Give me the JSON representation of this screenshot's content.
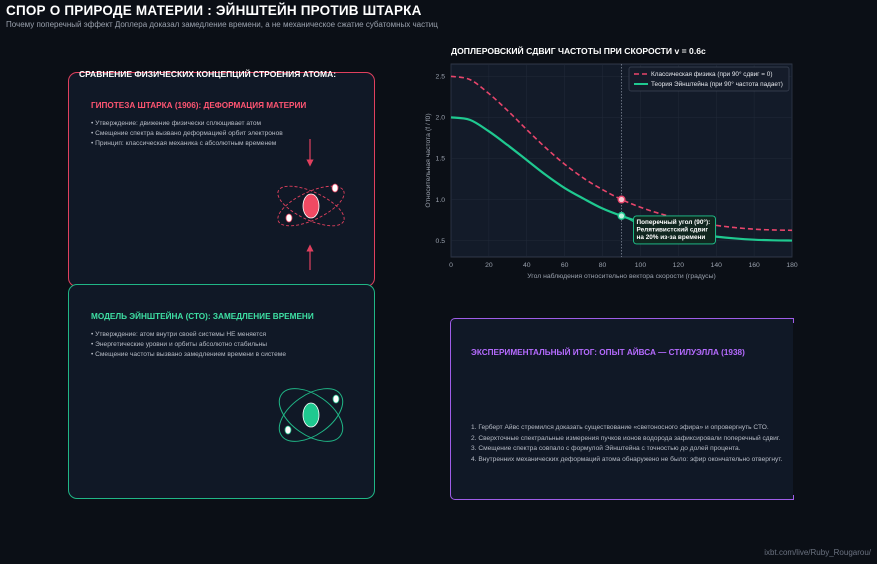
{
  "header": {
    "title": "СПОР О ПРИРОДЕ МАТЕРИИ : ЭЙНШТЕЙН ПРОТИВ ШТАРКА",
    "subtitle": "Почему поперечный эффект Доплера доказал замедление времени, а не механическое сжатие субатомных частиц"
  },
  "comparison": {
    "heading": "СРАВНЕНИЕ ФИЗИЧЕСКИХ КОНЦЕПЦИЙ СТРОЕНИЯ АТОМА:",
    "stark": {
      "title": "ГИПОТЕЗА ШТАРКА (1906): ДЕФОРМАЦИЯ МАТЕРИИ",
      "bullets": [
        "• Утверждение: движение физически сплющивает атом",
        "• Смещение спектра вызвано деформацией орбит электронов",
        "• Принцип: классическая механика с абсолютным временем"
      ],
      "color": "#e0405e"
    },
    "einstein": {
      "title": "МОДЕЛЬ ЭЙНШТЕЙНА (СТО): ЗАМЕДЛЕНИЕ ВРЕМЕНИ",
      "bullets": [
        "• Утверждение: атом внутри своей системы НЕ меняется",
        "• Энергетические уровни и орбиты абсолютно стабильны",
        "• Смещение частоты вызвано замедлением времени в системе"
      ],
      "color": "#20b686"
    }
  },
  "experiment": {
    "title": "ЭКСПЕРИМЕНТАЛЬНЫЙ ИТОГ: ОПЫТ АЙВСА — СТИЛУЭЛЛА (1938)",
    "steps": [
      "1. Герберт Айвс стремился доказать существование «светоносного эфира» и опровергнуть СТО.",
      "2. Сверхточные спектральные измерения пучков ионов водорода зафиксировали поперечный сдвиг.",
      "3. Смещение спектра совпало с формулой Эйнштейна с точностью до долей процента.",
      "4. Внутренних механических деформаций атома обнаружено не было: эфир окончательно отвергнут."
    ],
    "color": "#9f5de8"
  },
  "chart_data": {
    "type": "line",
    "title": "ДОПЛЕРОВСКИЙ СДВИГ ЧАСТОТЫ ПРИ СКОРОСТИ v = 0.6c",
    "xlabel": "Угол наблюдения относительно вектора скорости (градусы)",
    "ylabel": "Относительная частота (f / f0)",
    "xlim": [
      0,
      180
    ],
    "ylim": [
      0.3,
      2.65
    ],
    "xticks": [
      0,
      20,
      40,
      60,
      80,
      100,
      120,
      140,
      160,
      180
    ],
    "yticks": [
      0.5,
      1.0,
      1.5,
      2.0,
      2.5
    ],
    "ytick_labels": [
      "0.5",
      "1.0",
      "1.5",
      "2.0",
      "2.5"
    ],
    "grid": true,
    "legend_position": "top-right",
    "series": [
      {
        "name": "Классическая физика (при 90° сдвиг = 0)",
        "color": "#e8456b",
        "style": "dashed",
        "x": [
          0,
          10,
          20,
          30,
          40,
          50,
          60,
          70,
          80,
          90,
          100,
          110,
          120,
          130,
          140,
          150,
          160,
          170,
          180
        ],
        "values": [
          2.5,
          2.46,
          2.29,
          2.08,
          1.85,
          1.63,
          1.43,
          1.26,
          1.12,
          1.0,
          0.906,
          0.83,
          0.769,
          0.722,
          0.685,
          0.658,
          0.639,
          0.629,
          0.625
        ]
      },
      {
        "name": "Теория Эйнштейна (при 90° частота падает)",
        "color": "#1fc990",
        "style": "solid",
        "x": [
          0,
          10,
          20,
          30,
          40,
          50,
          60,
          70,
          80,
          90,
          100,
          110,
          120,
          130,
          140,
          150,
          160,
          170,
          180
        ],
        "values": [
          2.0,
          1.97,
          1.83,
          1.66,
          1.48,
          1.3,
          1.14,
          1.01,
          0.89,
          0.8,
          0.725,
          0.664,
          0.615,
          0.577,
          0.548,
          0.526,
          0.511,
          0.503,
          0.5
        ]
      }
    ],
    "vline_x": 90,
    "annotation": {
      "lines": [
        "Поперечный угол (90°):",
        "Релятивистский сдвиг",
        "на 20% из-за времени"
      ],
      "x": 90,
      "y": 0.8
    }
  },
  "watermark": "ixbt.com/live/Ruby_Rougarou/"
}
